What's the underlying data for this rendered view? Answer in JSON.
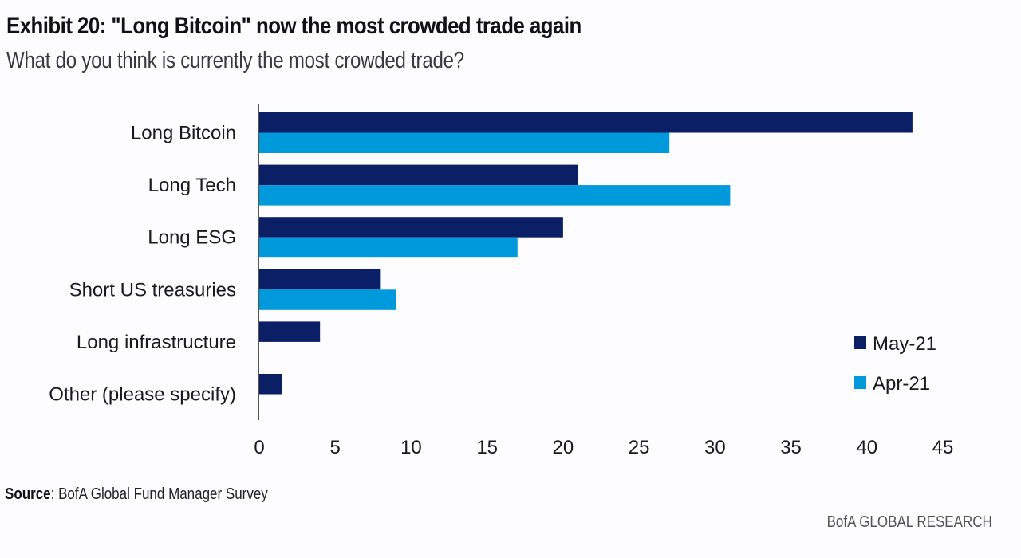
{
  "header": {
    "title": "Exhibit 20: \"Long Bitcoin\" now the most crowded trade again",
    "subtitle": "What do you think is currently the most crowded trade?"
  },
  "footer": {
    "source_label": "Source",
    "source_text": ": BofA Global Fund Manager Survey",
    "brand": "BofA GLOBAL RESEARCH"
  },
  "chart_data": {
    "type": "bar",
    "orientation": "horizontal",
    "title": "Exhibit 20: \"Long Bitcoin\" now the most crowded trade again",
    "subtitle": "What do you think is currently the most crowded trade?",
    "xlabel": "",
    "ylabel": "",
    "categories": [
      "Long Bitcoin",
      "Long Tech",
      "Long ESG",
      "Short US treasuries",
      "Long infrastructure",
      "Other (please specify)"
    ],
    "series": [
      {
        "name": "May-21",
        "color": "#0b1f66",
        "values": [
          43,
          21,
          20,
          8,
          4,
          1.5
        ]
      },
      {
        "name": "Apr-21",
        "color": "#0099dc",
        "values": [
          27,
          31,
          17,
          9,
          null,
          null
        ]
      }
    ],
    "xlim": [
      0,
      45
    ],
    "xticks": [
      0,
      5,
      10,
      15,
      20,
      25,
      30,
      35,
      40,
      45
    ],
    "grid": false,
    "legend_position": "right"
  }
}
